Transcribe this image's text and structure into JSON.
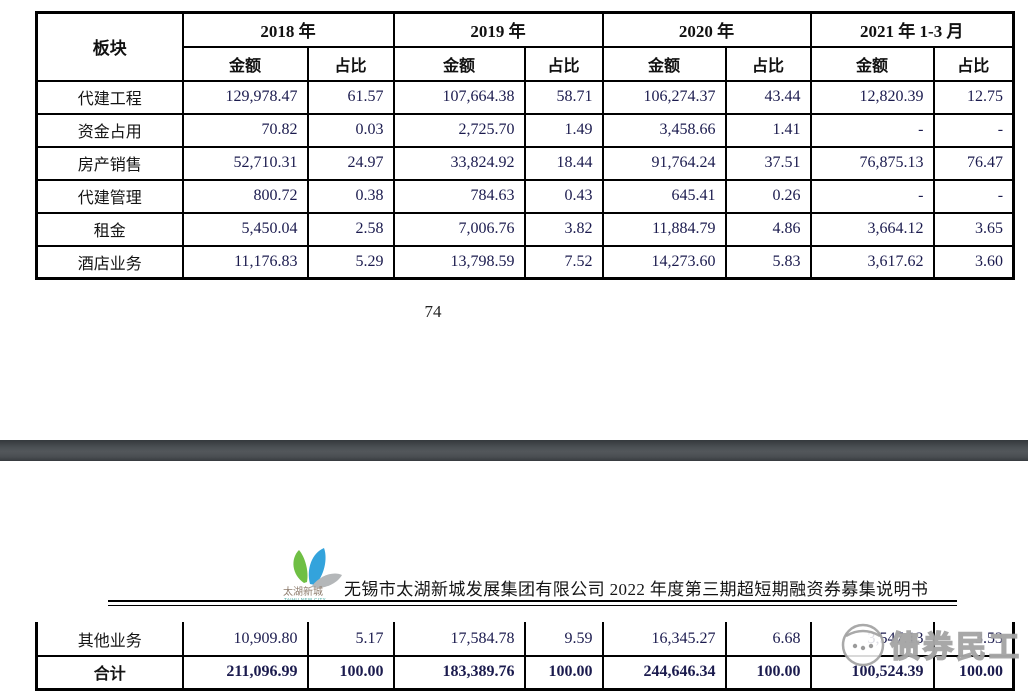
{
  "page_top": {
    "table": {
      "corner_header": "板块",
      "years": [
        "2018 年",
        "2019 年",
        "2020 年",
        "2021 年 1-3 月"
      ],
      "sub_headers": [
        "金额",
        "占比"
      ],
      "rows": [
        {
          "label": "代建工程",
          "bold": false,
          "values": [
            "129,978.47",
            "61.57",
            "107,664.38",
            "58.71",
            "106,274.37",
            "43.44",
            "12,820.39",
            "12.75"
          ]
        },
        {
          "label": "资金占用",
          "bold": false,
          "values": [
            "70.82",
            "0.03",
            "2,725.70",
            "1.49",
            "3,458.66",
            "1.41",
            "-",
            "-"
          ]
        },
        {
          "label": "房产销售",
          "bold": false,
          "values": [
            "52,710.31",
            "24.97",
            "33,824.92",
            "18.44",
            "91,764.24",
            "37.51",
            "76,875.13",
            "76.47"
          ]
        },
        {
          "label": "代建管理",
          "bold": false,
          "values": [
            "800.72",
            "0.38",
            "784.63",
            "0.43",
            "645.41",
            "0.26",
            "-",
            "-"
          ]
        },
        {
          "label": "租金",
          "bold": false,
          "values": [
            "5,450.04",
            "2.58",
            "7,006.76",
            "3.82",
            "11,884.79",
            "4.86",
            "3,664.12",
            "3.65"
          ]
        },
        {
          "label": "酒店业务",
          "bold": false,
          "values": [
            "11,176.83",
            "5.29",
            "13,798.59",
            "7.52",
            "14,273.60",
            "5.83",
            "3,617.62",
            "3.60"
          ]
        }
      ]
    },
    "page_number": "74"
  },
  "page_bottom": {
    "header": {
      "logo_name": "taihu-new-city-logo",
      "logo_text": "太湖新城",
      "logo_subtext": "TAIHU NEW CITY",
      "title": "无锡市太湖新城发展集团有限公司 2022 年度第三期超短期融资券募集说明书"
    },
    "table_rows": [
      {
        "label": "其他业务",
        "bold": false,
        "values": [
          "10,909.80",
          "5.17",
          "17,584.78",
          "9.59",
          "16,345.27",
          "6.68",
          "3,547.13",
          "3.53"
        ]
      },
      {
        "label": "合计",
        "bold": true,
        "values": [
          "211,096.99",
          "100.00",
          "183,389.76",
          "100.00",
          "244,646.34",
          "100.00",
          "100,524.39",
          "100.00"
        ]
      }
    ],
    "watermark": {
      "text": "债券民工"
    }
  },
  "colors": {
    "number_text": "#1b1b4e",
    "band_dark": "#34383c",
    "band_light": "#53575b",
    "logo_green": "#6fbf44",
    "logo_blue": "#33a3dc",
    "logo_gray": "#b4b7b9",
    "watermark_gray": "#9e9e9e"
  }
}
